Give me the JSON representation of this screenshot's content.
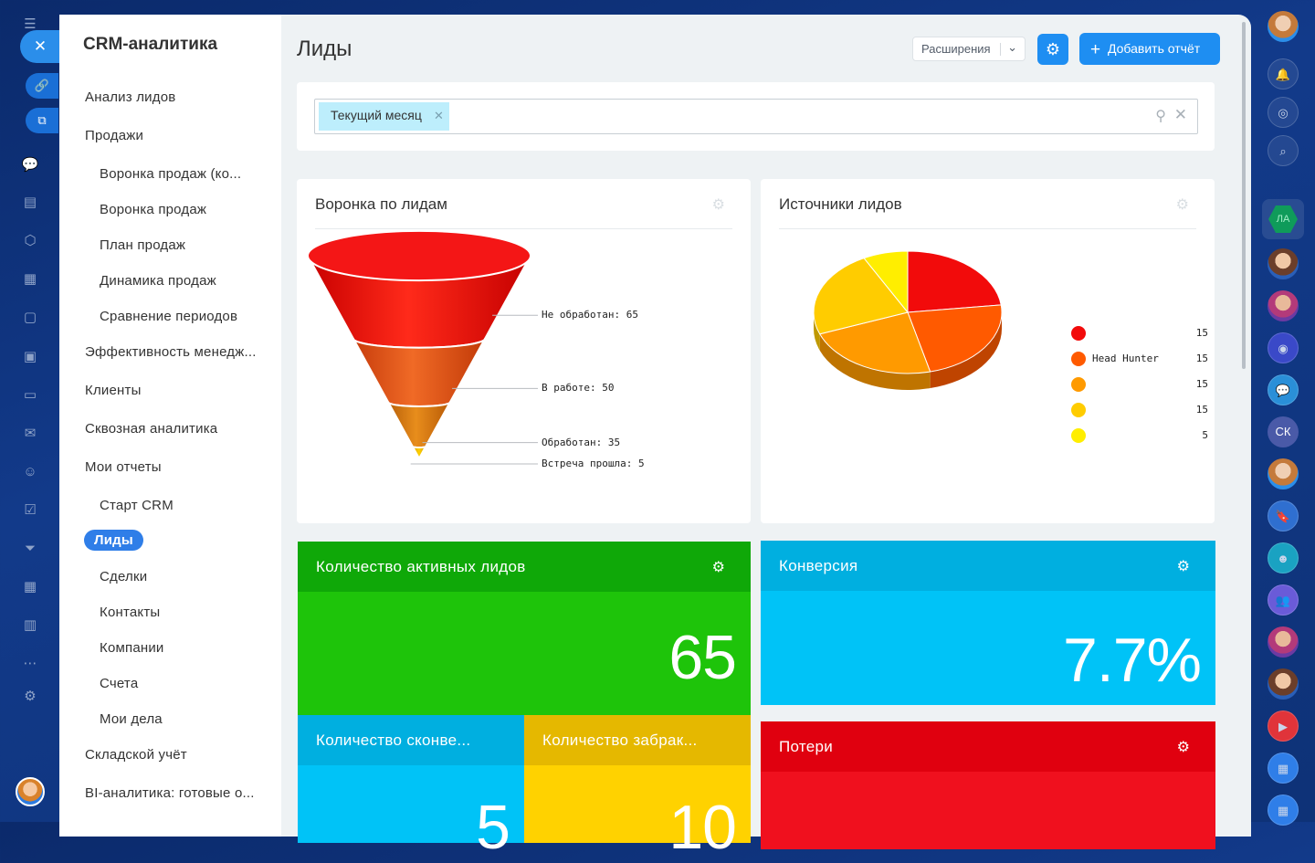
{
  "app": {
    "sidebar_title": "CRM-аналитика",
    "page_title": "Лиды"
  },
  "sidebar": {
    "items": [
      {
        "label": "Анализ лидов",
        "level": "top"
      },
      {
        "label": "Продажи",
        "level": "top"
      },
      {
        "label": "Воронка продаж (ко...",
        "level": "sub"
      },
      {
        "label": "Воронка продаж",
        "level": "sub"
      },
      {
        "label": "План продаж",
        "level": "sub"
      },
      {
        "label": "Динамика продаж",
        "level": "sub"
      },
      {
        "label": "Сравнение периодов",
        "level": "sub"
      },
      {
        "label": "Эффективность менедж...",
        "level": "top"
      },
      {
        "label": "Клиенты",
        "level": "top"
      },
      {
        "label": "Сквозная аналитика",
        "level": "top"
      },
      {
        "label": "Мои отчеты",
        "level": "top"
      },
      {
        "label": "Старт CRM",
        "level": "sub"
      },
      {
        "label": "Лиды",
        "level": "active"
      },
      {
        "label": "Сделки",
        "level": "sub"
      },
      {
        "label": "Контакты",
        "level": "sub"
      },
      {
        "label": "Компании",
        "level": "sub"
      },
      {
        "label": "Счета",
        "level": "sub"
      },
      {
        "label": "Мои дела",
        "level": "sub"
      },
      {
        "label": "Складской учёт",
        "level": "top"
      },
      {
        "label": "BI-аналитика: готовые о...",
        "level": "top"
      }
    ]
  },
  "toolbar": {
    "extensions_label": "Расширения",
    "add_report_label": "Добавить отчёт"
  },
  "filter": {
    "tag_label": "Текущий месяц"
  },
  "widgets": {
    "funnel": {
      "title": "Воронка по лидам",
      "chart_data": {
        "type": "funnel",
        "stages": [
          {
            "label": "Не обработан: 65",
            "value": 65,
            "color": "#f20b0b"
          },
          {
            "label": "В работе: 50",
            "value": 50,
            "color": "#e8551a"
          },
          {
            "label": "Обработан: 35",
            "value": 35,
            "color": "#d9780e"
          },
          {
            "label": "Встреча прошла: 5",
            "value": 5,
            "color": "#f0c000"
          }
        ]
      }
    },
    "sources": {
      "title": "Источники лидов",
      "chart_data": {
        "type": "pie",
        "slices": [
          {
            "name": "",
            "value": 15,
            "color": "#f20b0b"
          },
          {
            "name": "Head Hunter",
            "value": 15,
            "color": "#ff5a00"
          },
          {
            "name": "",
            "value": 15,
            "color": "#ff9a00"
          },
          {
            "name": "",
            "value": 15,
            "color": "#ffcc00"
          },
          {
            "name": "",
            "value": 5,
            "color": "#ffee00"
          }
        ]
      }
    },
    "active_leads": {
      "title": "Количество активных лидов",
      "value": "65",
      "color": "#1ec40a",
      "head_color": "#0fa808"
    },
    "conversion": {
      "title": "Конверсия",
      "value": "7.7%",
      "color": "#00c3f7",
      "head_color": "#00afe0"
    },
    "converted": {
      "title": "Количество сконве...",
      "value": "5",
      "color": "#00c3f7",
      "head_color": "#00afe0"
    },
    "rejected": {
      "title": "Количество забрак...",
      "value": "10",
      "color": "#ffd200",
      "head_color": "#e5b800"
    },
    "losses": {
      "title": "Потери",
      "value": "",
      "color": "#f0101e",
      "head_color": "#e0000f"
    }
  },
  "right_rail": {
    "badge_initials_1": "ЛА",
    "badge_initials_2": "СК"
  }
}
